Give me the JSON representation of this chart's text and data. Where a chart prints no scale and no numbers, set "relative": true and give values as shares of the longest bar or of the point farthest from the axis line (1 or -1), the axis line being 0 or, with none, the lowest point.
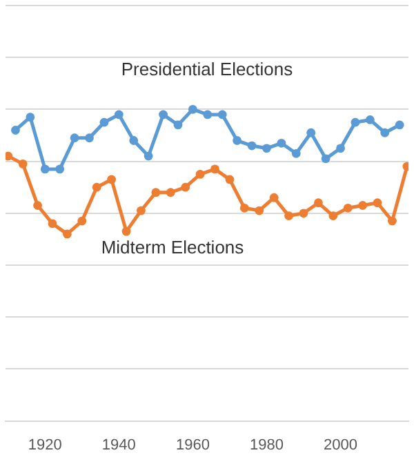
{
  "chart_data": {
    "type": "line",
    "relative": true,
    "grid": "y",
    "legend": false,
    "marker": "circle",
    "line_style": "solid",
    "xlim": [
      1909.3,
      2018.4
    ],
    "xticks": [
      1920,
      1940,
      1960,
      1980,
      2000
    ],
    "series": [
      {
        "name": "Presidential Elections",
        "color": "#5b9bd5",
        "x": [
          1912,
          1916,
          1920,
          1924,
          1928,
          1932,
          1936,
          1940,
          1944,
          1948,
          1952,
          1956,
          1960,
          1964,
          1968,
          1972,
          1976,
          1980,
          1984,
          1988,
          1992,
          1996,
          2000,
          2004,
          2008,
          2012,
          2016
        ],
        "values": [
          0.92,
          0.97,
          0.77,
          0.77,
          0.89,
          0.89,
          0.95,
          0.98,
          0.88,
          0.82,
          0.98,
          0.94,
          1,
          0.98,
          0.98,
          0.88,
          0.86,
          0.85,
          0.87,
          0.83,
          0.91,
          0.81,
          0.85,
          0.95,
          0.96,
          0.91,
          0.94
        ]
      },
      {
        "name": "Midterm Elections",
        "color": "#ed7d31",
        "x": [
          1910,
          1914,
          1918,
          1922,
          1926,
          1930,
          1934,
          1938,
          1942,
          1946,
          1950,
          1954,
          1958,
          1962,
          1966,
          1970,
          1974,
          1978,
          1982,
          1986,
          1990,
          1994,
          1998,
          2002,
          2006,
          2010,
          2014,
          2018
        ],
        "values": [
          0.82,
          0.79,
          0.63,
          0.56,
          0.52,
          0.57,
          0.7,
          0.73,
          0.53,
          0.61,
          0.68,
          0.68,
          0.7,
          0.75,
          0.77,
          0.73,
          0.62,
          0.61,
          0.66,
          0.59,
          0.6,
          0.64,
          0.59,
          0.62,
          0.63,
          0.64,
          0.57,
          0.78
        ]
      }
    ]
  }
}
